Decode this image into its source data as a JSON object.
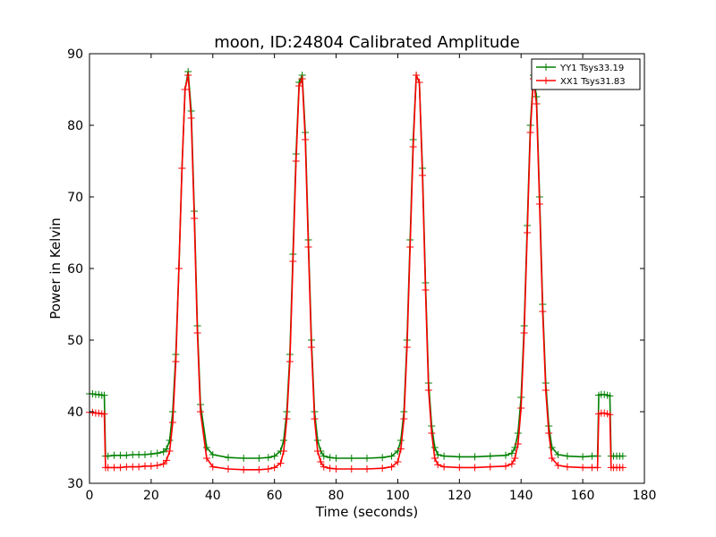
{
  "chart_data": {
    "type": "line",
    "title": "moon, ID:24804 Calibrated Amplitude",
    "xlabel": "Time (seconds)",
    "ylabel": "Power in Kelvin",
    "xlim": [
      0,
      180
    ],
    "ylim": [
      30,
      90
    ],
    "xticks": [
      0,
      20,
      40,
      60,
      80,
      100,
      120,
      140,
      160,
      180
    ],
    "yticks": [
      30,
      40,
      50,
      60,
      70,
      80,
      90
    ],
    "grid": false,
    "legend_position": "top-right",
    "marker": "plus",
    "series": [
      {
        "name": "YY1 Tsys33.19",
        "color": "#008000",
        "x": [
          0,
          1,
          2,
          3,
          4,
          4.8,
          5.2,
          6,
          8,
          10,
          12,
          14,
          16,
          18,
          20,
          22,
          24,
          25,
          26,
          27,
          28,
          29,
          30,
          31,
          32,
          33,
          34,
          35,
          36,
          38,
          40,
          45,
          50,
          55,
          58,
          60,
          62,
          63,
          64,
          65,
          66,
          67,
          68,
          69,
          70,
          71,
          72,
          73,
          74,
          75,
          76,
          78,
          80,
          85,
          90,
          95,
          98,
          100,
          101,
          102,
          103,
          104,
          105,
          106,
          107,
          108,
          109,
          110,
          111,
          112,
          113,
          115,
          120,
          125,
          130,
          135,
          137,
          138,
          139,
          140,
          141,
          142,
          143,
          144,
          145,
          146,
          147,
          148,
          149,
          150,
          152,
          155,
          160,
          163,
          164.8,
          165.2,
          166,
          167,
          168,
          168.8,
          169.2,
          170,
          171,
          172,
          173
        ],
        "y": [
          42.5,
          42.5,
          42.4,
          42.4,
          42.3,
          42.3,
          33.8,
          33.8,
          33.9,
          33.9,
          33.9,
          34.0,
          34.0,
          34.0,
          34.1,
          34.2,
          34.4,
          34.8,
          36.0,
          40.0,
          48.0,
          60.0,
          74.0,
          85.0,
          87.5,
          82.0,
          68.0,
          52.0,
          41.0,
          35.0,
          34.0,
          33.6,
          33.5,
          33.5,
          33.6,
          33.8,
          34.5,
          36.0,
          40.0,
          48.0,
          62.0,
          76.0,
          86.0,
          87.0,
          79.0,
          64.0,
          50.0,
          40.0,
          36.0,
          34.5,
          33.8,
          33.6,
          33.5,
          33.5,
          33.5,
          33.6,
          33.8,
          34.5,
          36.0,
          40.0,
          50.0,
          64.0,
          78.0,
          87.0,
          86.0,
          74.0,
          58.0,
          44.0,
          38.0,
          35.0,
          34.0,
          33.8,
          33.7,
          33.7,
          33.8,
          33.9,
          34.2,
          35.0,
          37.0,
          42.0,
          52.0,
          66.0,
          80.0,
          87.0,
          84.0,
          70.0,
          55.0,
          44.0,
          38.0,
          35.0,
          34.0,
          33.8,
          33.7,
          33.8,
          33.8,
          42.3,
          42.4,
          42.4,
          42.3,
          42.2,
          33.8,
          33.8,
          33.8,
          33.8,
          33.8
        ]
      },
      {
        "name": "XX1 Tsys31.83",
        "color": "#ff0000",
        "x": [
          0,
          1,
          2,
          3,
          4,
          4.8,
          5.2,
          6,
          8,
          10,
          12,
          14,
          16,
          18,
          20,
          22,
          24,
          25,
          26,
          27,
          28,
          29,
          30,
          31,
          32,
          33,
          34,
          35,
          36,
          38,
          40,
          45,
          50,
          55,
          58,
          60,
          62,
          63,
          64,
          65,
          66,
          67,
          68,
          69,
          70,
          71,
          72,
          73,
          74,
          75,
          76,
          78,
          80,
          85,
          90,
          95,
          98,
          100,
          101,
          102,
          103,
          104,
          105,
          106,
          107,
          108,
          109,
          110,
          111,
          112,
          113,
          115,
          120,
          125,
          130,
          135,
          137,
          138,
          139,
          140,
          141,
          142,
          143,
          144,
          145,
          146,
          147,
          148,
          149,
          150,
          152,
          155,
          160,
          163,
          164.8,
          165.2,
          166,
          167,
          168,
          168.8,
          169.2,
          170,
          171,
          172,
          173
        ],
        "y": [
          39.9,
          39.9,
          39.8,
          39.8,
          39.7,
          39.7,
          32.2,
          32.2,
          32.2,
          32.2,
          32.3,
          32.3,
          32.3,
          32.4,
          32.4,
          32.5,
          32.7,
          33.2,
          34.5,
          38.5,
          47.0,
          60.0,
          74.0,
          85.0,
          87.0,
          81.0,
          67.0,
          51.0,
          40.0,
          33.5,
          32.3,
          32.0,
          31.9,
          31.9,
          32.0,
          32.2,
          32.8,
          34.5,
          39.0,
          47.0,
          61.0,
          75.0,
          85.5,
          86.5,
          78.0,
          63.0,
          49.0,
          39.0,
          34.5,
          33.0,
          32.3,
          32.1,
          32.0,
          32.0,
          32.0,
          32.1,
          32.3,
          33.0,
          34.8,
          39.0,
          49.0,
          63.0,
          77.0,
          87.0,
          86.0,
          73.0,
          57.0,
          43.0,
          37.0,
          33.5,
          32.6,
          32.3,
          32.2,
          32.2,
          32.3,
          32.4,
          32.7,
          33.5,
          35.5,
          40.5,
          51.0,
          65.0,
          79.0,
          86.5,
          83.0,
          69.0,
          54.0,
          43.0,
          37.0,
          33.5,
          32.5,
          32.3,
          32.2,
          32.2,
          32.2,
          39.7,
          39.8,
          39.8,
          39.7,
          39.6,
          32.2,
          32.2,
          32.2,
          32.2,
          32.2
        ]
      }
    ]
  }
}
